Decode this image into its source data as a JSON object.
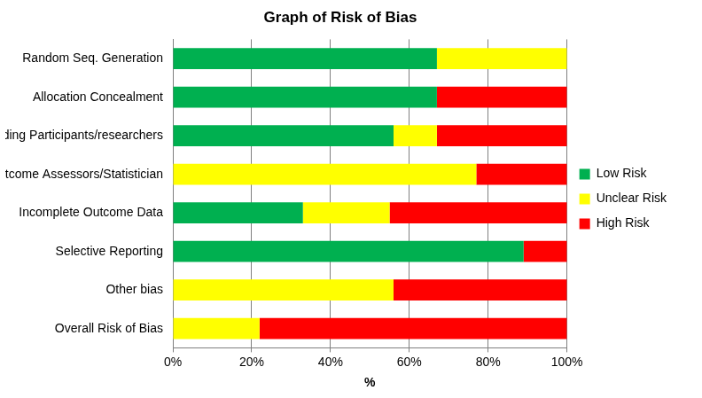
{
  "chart_data": {
    "type": "bar",
    "title": "Graph of Risk of Bias",
    "x_label": "%",
    "orientation": "horizontal",
    "stacked": true,
    "grid": true,
    "legend": "right",
    "categories": [
      "Random Seq. Generation",
      "Allocation Concealment",
      "Blinding Participants/researchers",
      "Blinding Outcome Assessors/Statistician",
      "Incomplete Outcome Data",
      "Selective Reporting",
      "Other bias",
      "Overall Risk of Bias"
    ],
    "series": [
      {
        "name": "Low Risk",
        "color": "#00b050",
        "values": [
          67,
          67,
          56,
          0,
          33,
          89,
          0,
          0
        ]
      },
      {
        "name": "Unclear Risk",
        "color": "#ffff00",
        "values": [
          33,
          0,
          11,
          77,
          22,
          0,
          56,
          22
        ]
      },
      {
        "name": "High Risk",
        "color": "#ff0000",
        "values": [
          0,
          33,
          33,
          23,
          45,
          11,
          44,
          78
        ]
      }
    ],
    "xlim": [
      0,
      100
    ],
    "xticks": [
      {
        "value": 0,
        "label": "0%"
      },
      {
        "value": 20,
        "label": "20%"
      },
      {
        "value": 40,
        "label": "40%"
      },
      {
        "value": 60,
        "label": "60%"
      },
      {
        "value": 80,
        "label": "80%"
      },
      {
        "value": 100,
        "label": "100%"
      }
    ]
  }
}
